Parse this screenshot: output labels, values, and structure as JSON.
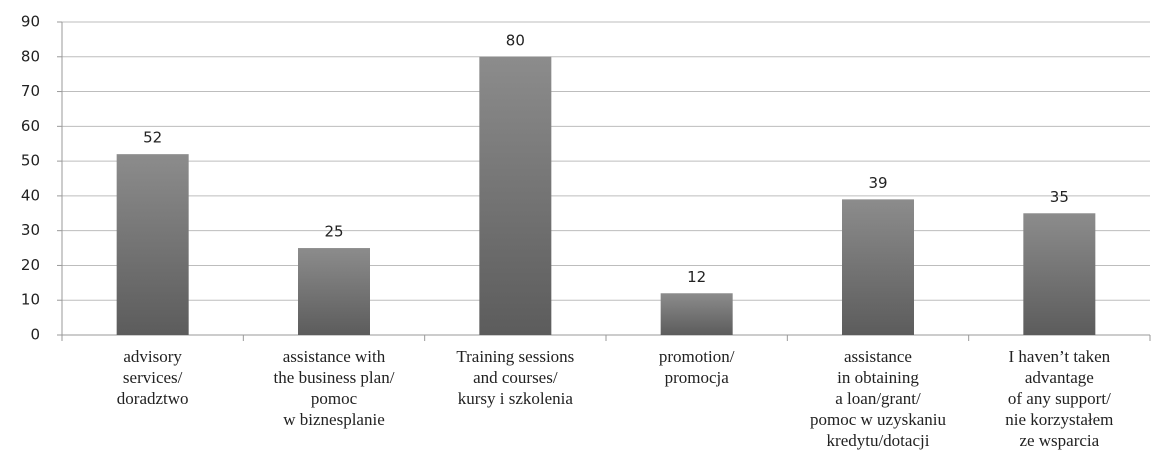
{
  "chart_data": {
    "type": "bar",
    "categories": [
      "advisory\nservices/\ndoradztwo",
      "assistance with\nthe business plan/\npomoc\nw biznesplanie",
      "Training sessions\nand courses/\nkursy i szkolenia",
      "promotion/\npromocja",
      "assistance\nin obtaining\na loan/grant/\npomoc w uzyskaniu\nkredytu/dotacji",
      "I haven’t taken\nadvantage\nof any support/\nnie korzystałem\nze wsparcia"
    ],
    "values": [
      52,
      25,
      80,
      12,
      39,
      35
    ],
    "color": "#777777",
    "ylim": [
      0,
      90
    ],
    "yticks": [
      0,
      10,
      20,
      30,
      40,
      50,
      60,
      70,
      80,
      90
    ],
    "grid": true
  }
}
